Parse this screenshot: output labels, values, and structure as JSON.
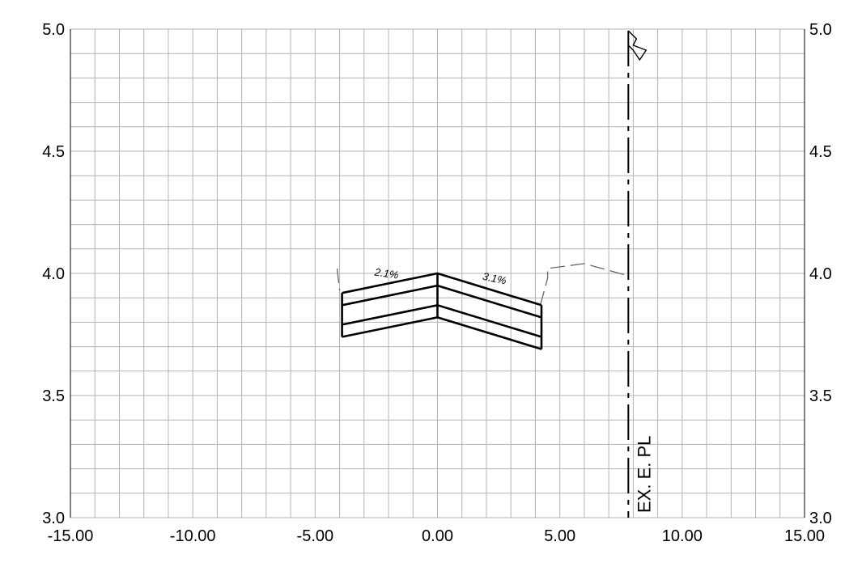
{
  "chart_data": {
    "type": "cross-section",
    "xlim": [
      -15,
      15
    ],
    "ylim": [
      3.0,
      5.0
    ],
    "x_ticks": [
      "-15.00",
      "-10.00",
      "-5.00",
      "0.00",
      "5.00",
      "10.00",
      "15.00"
    ],
    "x_tick_values": [
      -15,
      -10,
      -5,
      0,
      5,
      10,
      15
    ],
    "y_ticks": [
      "3.0",
      "3.5",
      "4.0",
      "4.5",
      "5.0"
    ],
    "y_tick_values": [
      3.0,
      3.5,
      4.0,
      4.5,
      5.0
    ],
    "grid_minor_x": 1,
    "grid_minor_y": 0.1,
    "grid": true,
    "pavement_layers": [
      {
        "points": [
          [
            -3.9,
            3.92
          ],
          [
            0,
            4.0
          ],
          [
            4.25,
            3.87
          ]
        ]
      },
      {
        "points": [
          [
            -3.9,
            3.87
          ],
          [
            0,
            3.95
          ],
          [
            4.25,
            3.82
          ]
        ]
      },
      {
        "points": [
          [
            -3.9,
            3.79
          ],
          [
            0,
            3.87
          ],
          [
            4.25,
            3.74
          ]
        ]
      },
      {
        "points": [
          [
            -3.9,
            3.74
          ],
          [
            0,
            3.82
          ],
          [
            4.25,
            3.69
          ]
        ]
      }
    ],
    "pavement_edges": [
      {
        "x": -3.9,
        "y_bottom": 3.74,
        "y_top": 3.92
      },
      {
        "x": 0,
        "y_bottom": 3.82,
        "y_top": 4.0
      },
      {
        "x": 4.25,
        "y_bottom": 3.69,
        "y_top": 3.87
      }
    ],
    "existing_ground": [
      [
        4.2,
        3.87
      ],
      [
        4.5,
        3.98
      ],
      [
        4.5,
        4.02
      ],
      [
        6.0,
        4.04
      ],
      [
        7.8,
        3.99
      ]
    ],
    "existing_ground_left": [
      [
        -4.1,
        4.02
      ],
      [
        -4.0,
        3.93
      ]
    ],
    "slope_labels": [
      {
        "text": "2.1%",
        "x": -2.1,
        "y": 3.985,
        "angle": 8
      },
      {
        "text": "3.1%",
        "x": 2.3,
        "y": 3.965,
        "angle": 12
      }
    ],
    "property_line": {
      "x": 7.8,
      "label": "EX. E. PL"
    }
  },
  "colors": {
    "grid": "#b3b3b3",
    "axis": "#000000",
    "pavement": "#000000",
    "existing_ground": "#666666",
    "property_line": "#000000"
  }
}
